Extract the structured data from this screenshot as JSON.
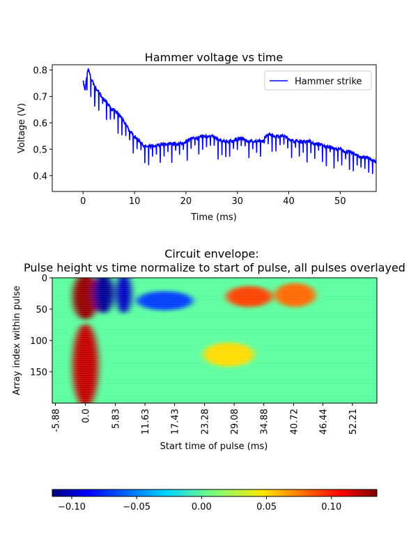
{
  "chart_data": [
    {
      "type": "line",
      "title": "Hammer voltage vs time",
      "xlabel": "Time (ms)",
      "ylabel": "Voltage (V)",
      "xlim": [
        -6,
        57
      ],
      "ylim": [
        0.34,
        0.82
      ],
      "xticks": [
        0,
        10,
        20,
        30,
        40,
        50
      ],
      "xtick_labels": [
        "0",
        "10",
        "20",
        "30",
        "40",
        "50"
      ],
      "yticks": [
        0.4,
        0.5,
        0.6,
        0.7,
        0.8
      ],
      "ytick_labels": [
        "0.4",
        "0.5",
        "0.6",
        "0.7",
        "0.8"
      ],
      "legend": {
        "position": "top-right",
        "entries": [
          "Hammer strike"
        ]
      },
      "series": [
        {
          "name": "Hammer strike",
          "color": "#0000ff",
          "x": [
            0,
            0.2,
            0.4,
            0.6,
            0.8,
            1,
            1.2,
            1.5,
            2,
            2.5,
            3,
            3.5,
            4,
            4.5,
            5,
            5.5,
            6,
            6.5,
            7,
            7.5,
            8,
            8.5,
            9,
            9.5,
            10,
            10.5,
            11,
            11.5,
            12,
            13,
            14,
            15,
            16,
            17,
            18,
            19,
            20,
            21,
            22,
            23,
            24,
            25,
            26,
            27,
            28,
            29,
            30,
            31,
            32,
            33,
            34,
            35,
            36,
            37,
            38,
            39,
            40,
            41,
            42,
            43,
            44,
            45,
            46,
            47,
            48,
            49,
            50,
            51,
            52,
            53,
            54,
            55,
            56,
            57
          ],
          "y": [
            0.76,
            0.74,
            0.72,
            0.76,
            0.79,
            0.8,
            0.79,
            0.77,
            0.75,
            0.73,
            0.72,
            0.7,
            0.69,
            0.68,
            0.67,
            0.65,
            0.65,
            0.64,
            0.63,
            0.62,
            0.6,
            0.59,
            0.57,
            0.56,
            0.55,
            0.54,
            0.53,
            0.52,
            0.51,
            0.51,
            0.51,
            0.52,
            0.52,
            0.52,
            0.52,
            0.52,
            0.53,
            0.54,
            0.54,
            0.55,
            0.55,
            0.55,
            0.54,
            0.53,
            0.53,
            0.53,
            0.54,
            0.54,
            0.53,
            0.53,
            0.53,
            0.53,
            0.56,
            0.55,
            0.55,
            0.55,
            0.54,
            0.53,
            0.53,
            0.53,
            0.53,
            0.52,
            0.52,
            0.51,
            0.51,
            0.5,
            0.5,
            0.49,
            0.49,
            0.48,
            0.47,
            0.47,
            0.46,
            0.45
          ]
        }
      ]
    },
    {
      "type": "heatmap",
      "title": "Circuit envelope:\nPulse height vs time normalize to start of pulse, all pulses overlayed",
      "xlabel": "Start time of pulse (ms)",
      "ylabel": "Array index within pulse",
      "xlim": [
        -6.5,
        57
      ],
      "ylim": [
        200,
        0
      ],
      "xticks": [
        -5.88,
        0.0,
        5.83,
        11.63,
        17.43,
        23.28,
        29.08,
        34.88,
        40.72,
        46.44,
        52.21
      ],
      "xtick_labels": [
        "-5.88",
        "0.0",
        "5.83",
        "11.63",
        "17.43",
        "23.28",
        "29.08",
        "34.88",
        "40.72",
        "46.44",
        "52.21"
      ],
      "yticks": [
        0,
        50,
        100,
        150
      ],
      "ytick_labels": [
        "0",
        "50",
        "100",
        "150"
      ],
      "colormap": "jet",
      "colorbar": {
        "position": "bottom",
        "range": [
          -0.115,
          0.135
        ],
        "ticks": [
          -0.1,
          -0.05,
          0.0,
          0.05,
          0.1
        ],
        "tick_labels": [
          "−0.10",
          "−0.05",
          "0.00",
          "0.05",
          "0.10"
        ]
      },
      "features": [
        {
          "time": 0.0,
          "index_range": [
            0,
            60
          ],
          "value": 0.13
        },
        {
          "time": 0.0,
          "index_range": [
            80,
            200
          ],
          "value": 0.12
        },
        {
          "time": 3.5,
          "index_range": [
            0,
            50
          ],
          "value": -0.11
        },
        {
          "time": 7.5,
          "index_range": [
            0,
            50
          ],
          "value": -0.1
        },
        {
          "time": 15.5,
          "index_range": [
            28,
            45
          ],
          "value": -0.07
        },
        {
          "time": 32.0,
          "index_range": [
            20,
            40
          ],
          "value": 0.09
        },
        {
          "time": 41.0,
          "index_range": [
            15,
            40
          ],
          "value": 0.08
        },
        {
          "time": 28.0,
          "index_range": [
            110,
            135
          ],
          "value": 0.05
        }
      ]
    }
  ]
}
